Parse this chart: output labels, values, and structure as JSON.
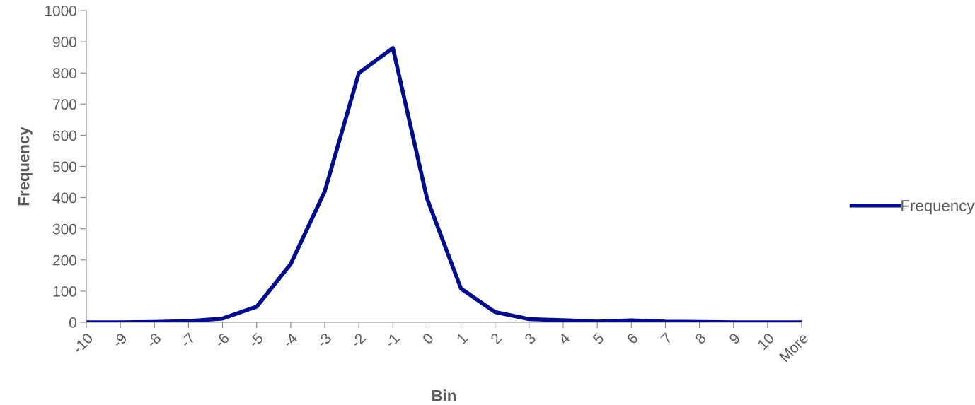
{
  "chart_data": {
    "type": "line",
    "xlabel": "Bin",
    "ylabel": "Frequency",
    "categories": [
      "-10",
      "-9",
      "-8",
      "-7",
      "-6",
      "-5",
      "-4",
      "-3",
      "-2",
      "-1",
      "0",
      "1",
      "2",
      "3",
      "4",
      "5",
      "6",
      "7",
      "8",
      "9",
      "10",
      "More"
    ],
    "series": [
      {
        "name": "Frequency",
        "color": "#000c8c",
        "values": [
          0,
          0,
          1,
          4,
          12,
          50,
          187,
          420,
          800,
          880,
          398,
          108,
          33,
          10,
          7,
          2,
          6,
          2,
          1,
          0,
          0,
          0
        ]
      }
    ],
    "ylim": [
      0,
      1000
    ],
    "yticks": [
      0,
      100,
      200,
      300,
      400,
      500,
      600,
      700,
      800,
      900,
      1000
    ],
    "grid": false,
    "legend": "right",
    "marker": "none",
    "line_style": "solid"
  }
}
